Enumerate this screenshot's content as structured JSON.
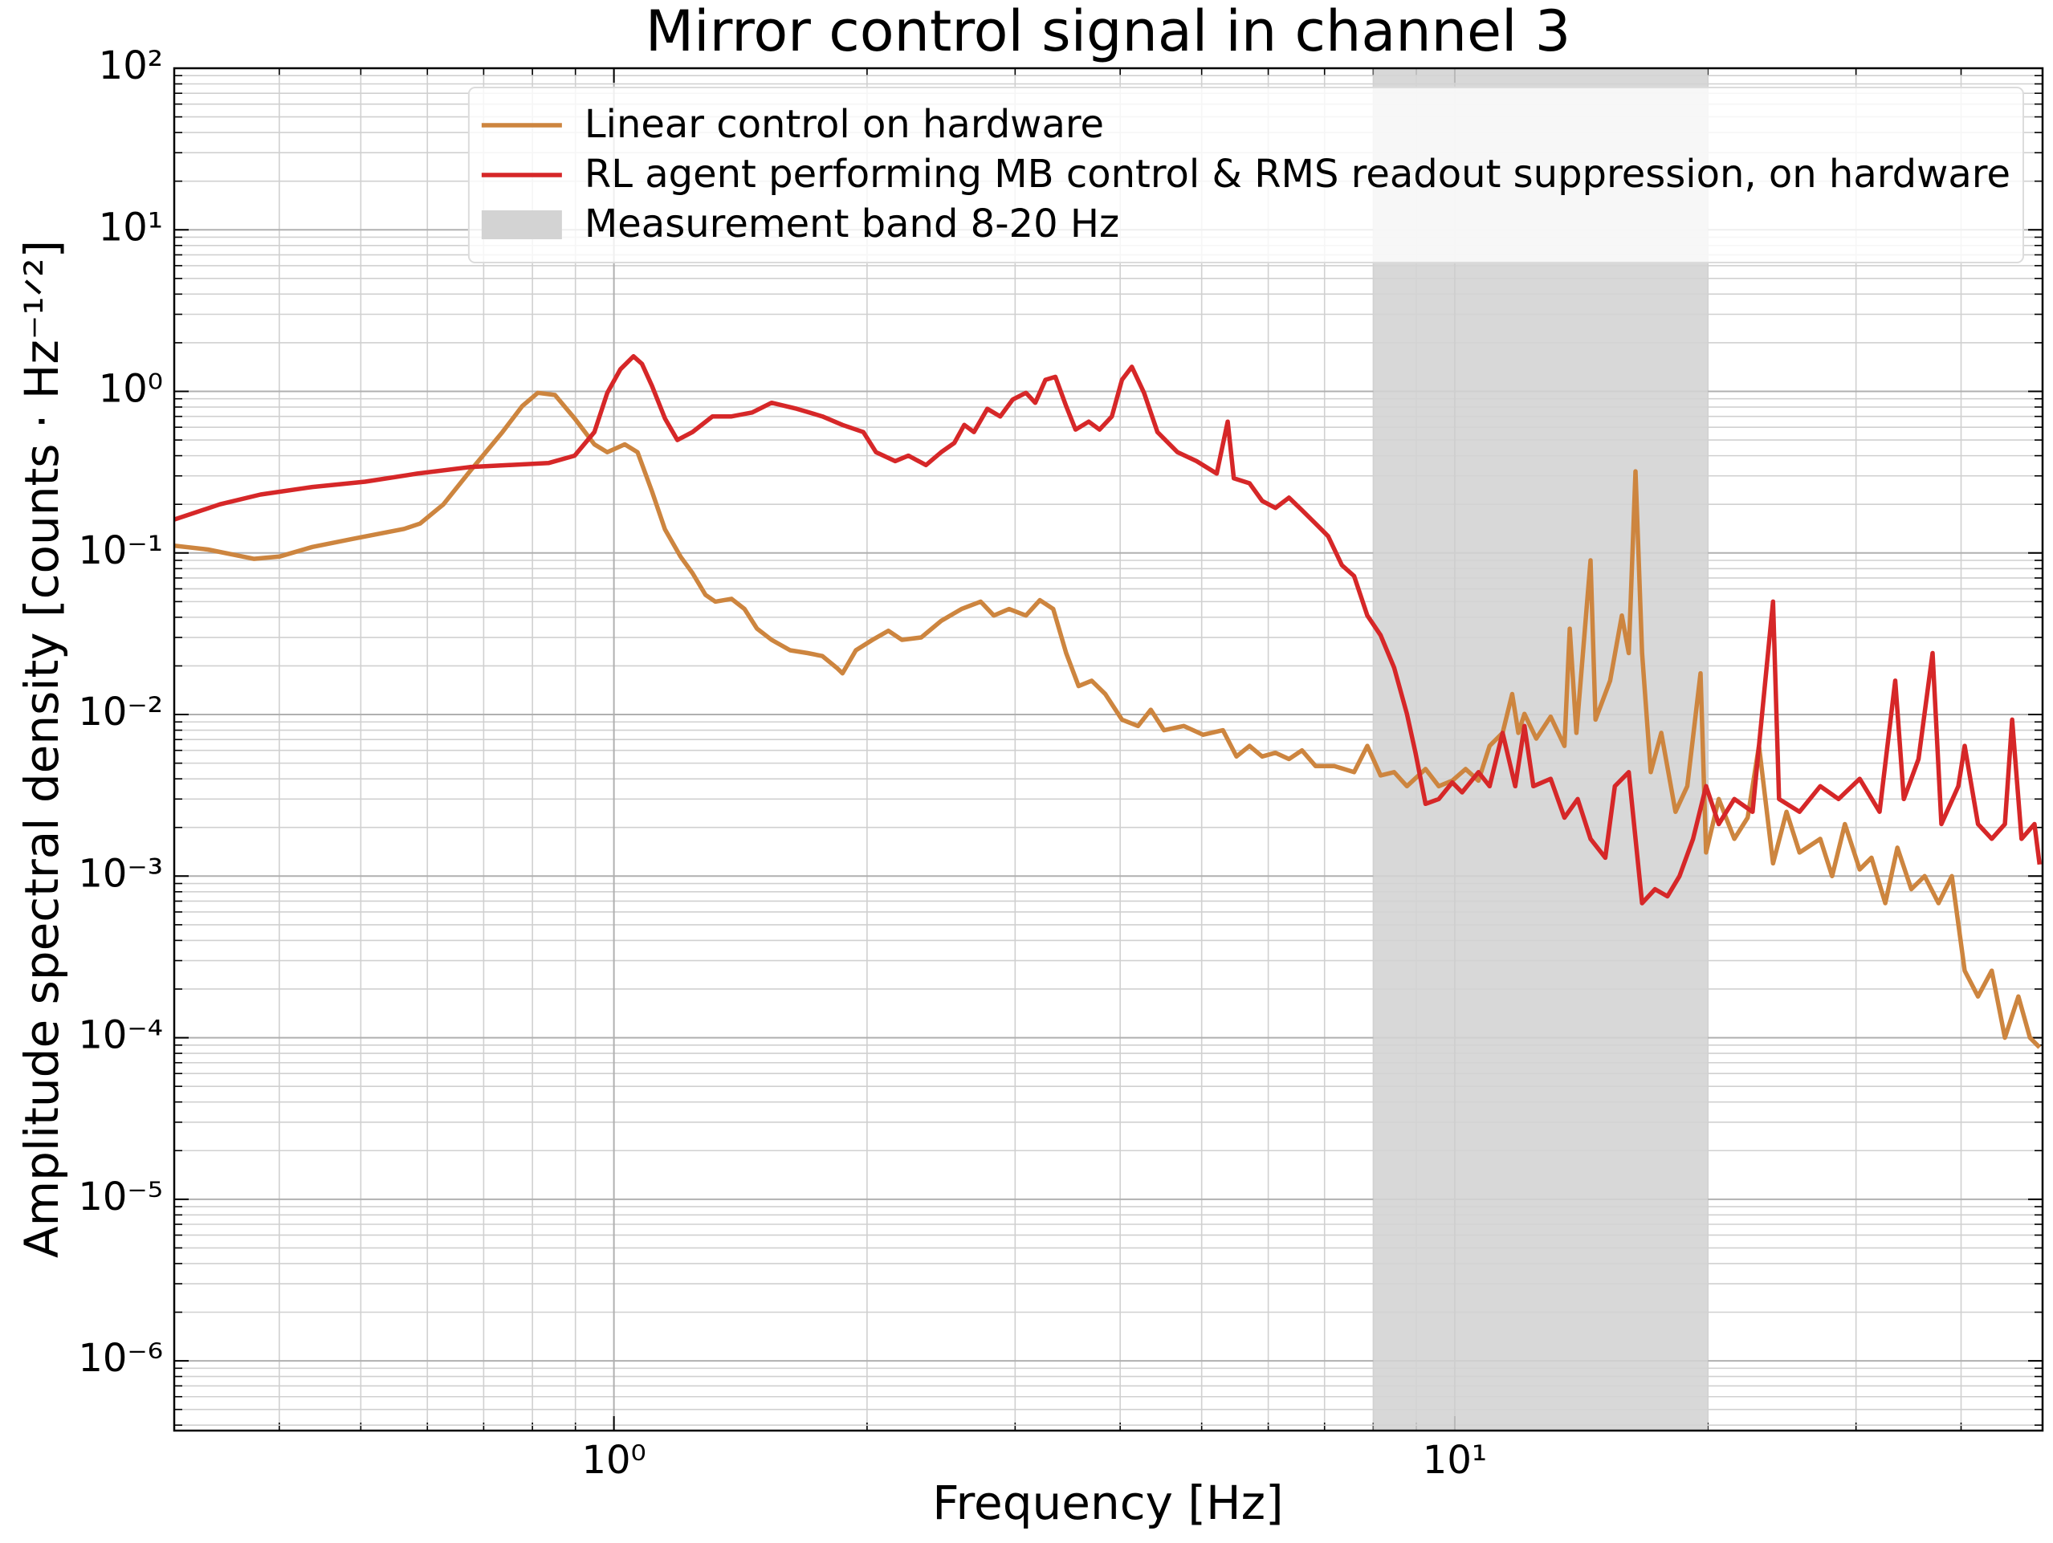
{
  "chart_data": {
    "type": "line",
    "title": "Mirror control signal in channel 3",
    "x_label": "Frequency [Hz]",
    "y_label": "Amplitude spectral density [counts · Hz⁻¹ᐟ²]",
    "xscale": "log",
    "yscale": "log",
    "grid": true,
    "legend": "upper right",
    "xlim": [
      0.3,
      50
    ],
    "ylim": [
      3.7e-07,
      100
    ],
    "xticks": [
      {
        "value": 1,
        "label": "10⁰"
      },
      {
        "value": 10,
        "label": "10¹"
      }
    ],
    "yticks": [
      {
        "value": 1e-06,
        "label": "10⁻⁶"
      },
      {
        "value": 1e-05,
        "label": "10⁻⁵"
      },
      {
        "value": 0.0001,
        "label": "10⁻⁴"
      },
      {
        "value": 0.001,
        "label": "10⁻³"
      },
      {
        "value": 0.01,
        "label": "10⁻²"
      },
      {
        "value": 0.1,
        "label": "10⁻¹"
      },
      {
        "value": 1,
        "label": "10⁰"
      },
      {
        "value": 10,
        "label": "10¹"
      },
      {
        "value": 100,
        "label": "10²"
      }
    ],
    "span": {
      "name": "Measurement band 8-20 Hz",
      "xmin": 8,
      "xmax": 20,
      "color": "#d3d3d3"
    },
    "series": [
      {
        "name": "Linear control on hardware",
        "color": "#cd853f",
        "x": [
          0.3,
          0.329,
          0.373,
          0.4,
          0.438,
          0.488,
          0.563,
          0.588,
          0.627,
          0.674,
          0.737,
          0.778,
          0.812,
          0.851,
          0.898,
          0.948,
          0.982,
          1.03,
          1.067,
          1.11,
          1.15,
          1.2,
          1.24,
          1.285,
          1.32,
          1.38,
          1.43,
          1.48,
          1.54,
          1.62,
          1.7,
          1.77,
          1.84,
          1.87,
          1.94,
          2.03,
          2.12,
          2.2,
          2.32,
          2.45,
          2.59,
          2.73,
          2.83,
          2.95,
          3.09,
          3.21,
          3.33,
          3.45,
          3.57,
          3.7,
          3.84,
          4.02,
          4.2,
          4.35,
          4.51,
          4.76,
          5.02,
          5.3,
          5.5,
          5.7,
          5.9,
          6.12,
          6.35,
          6.58,
          6.83,
          7.19,
          7.59,
          7.87,
          8.16,
          8.47,
          8.77,
          9.23,
          9.57,
          9.93,
          10.3,
          10.67,
          11.0,
          11.4,
          11.7,
          11.9,
          12.1,
          12.5,
          13.0,
          13.5,
          13.7,
          13.95,
          14.5,
          14.7,
          15.3,
          15.8,
          16.1,
          16.4,
          16.7,
          17.1,
          17.6,
          18.3,
          18.9,
          19.6,
          19.9,
          20.6,
          21.5,
          22.3,
          23.0,
          23.9,
          24.8,
          25.7,
          27.2,
          28.1,
          29.1,
          30.3,
          31.3,
          32.5,
          33.6,
          34.9,
          36.2,
          37.6,
          39.0,
          40.4,
          41.9,
          43.5,
          45.1,
          46.8,
          48.3,
          49.6
        ],
        "values": [
          0.111,
          0.105,
          0.092,
          0.095,
          0.109,
          0.122,
          0.141,
          0.152,
          0.2,
          0.32,
          0.56,
          0.81,
          0.98,
          0.95,
          0.68,
          0.47,
          0.42,
          0.47,
          0.42,
          0.24,
          0.14,
          0.095,
          0.075,
          0.055,
          0.05,
          0.052,
          0.045,
          0.034,
          0.029,
          0.025,
          0.024,
          0.023,
          0.0195,
          0.018,
          0.025,
          0.029,
          0.033,
          0.029,
          0.03,
          0.038,
          0.045,
          0.05,
          0.041,
          0.045,
          0.041,
          0.051,
          0.045,
          0.024,
          0.015,
          0.0162,
          0.0134,
          0.0093,
          0.0085,
          0.0107,
          0.008,
          0.0085,
          0.0075,
          0.008,
          0.0055,
          0.0064,
          0.0055,
          0.0058,
          0.0053,
          0.006,
          0.0048,
          0.0048,
          0.0044,
          0.0064,
          0.0042,
          0.0044,
          0.0036,
          0.0046,
          0.0036,
          0.0039,
          0.0046,
          0.0039,
          0.0064,
          0.0077,
          0.0134,
          0.0077,
          0.0101,
          0.0071,
          0.0097,
          0.0064,
          0.034,
          0.0077,
          0.09,
          0.0093,
          0.0162,
          0.041,
          0.024,
          0.32,
          0.024,
          0.0044,
          0.0077,
          0.0025,
          0.0036,
          0.018,
          0.0014,
          0.003,
          0.0017,
          0.0023,
          0.0064,
          0.0012,
          0.0025,
          0.0014,
          0.0017,
          0.001,
          0.0021,
          0.0011,
          0.0013,
          0.00068,
          0.0015,
          0.00083,
          0.001,
          0.00068,
          0.001,
          0.00026,
          0.00018,
          0.00026,
          0.0001,
          0.00018,
          0.0001,
          8.7e-05
        ]
      },
      {
        "name": "RL agent performing MB control & RMS readout suppression, on hardware",
        "color": "#d62728",
        "x": [
          0.3,
          0.34,
          0.38,
          0.438,
          0.506,
          0.584,
          0.674,
          0.75,
          0.836,
          0.898,
          0.948,
          0.982,
          1.018,
          1.055,
          1.08,
          1.11,
          1.15,
          1.19,
          1.24,
          1.31,
          1.38,
          1.46,
          1.54,
          1.65,
          1.77,
          1.87,
          1.98,
          2.05,
          2.16,
          2.24,
          2.35,
          2.45,
          2.54,
          2.61,
          2.68,
          2.78,
          2.88,
          2.98,
          3.09,
          3.17,
          3.26,
          3.35,
          3.45,
          3.54,
          3.67,
          3.78,
          3.91,
          4.02,
          4.13,
          4.27,
          4.43,
          4.68,
          4.93,
          5.21,
          5.37,
          5.46,
          5.7,
          5.9,
          6.12,
          6.35,
          6.58,
          6.83,
          7.07,
          7.34,
          7.59,
          7.87,
          8.16,
          8.47,
          8.77,
          8.98,
          9.23,
          9.57,
          9.93,
          10.2,
          10.67,
          11.0,
          11.4,
          11.8,
          12.1,
          12.4,
          13.0,
          13.5,
          14.0,
          14.5,
          15.1,
          15.5,
          16.1,
          16.7,
          17.3,
          17.9,
          18.5,
          19.2,
          19.9,
          20.6,
          21.5,
          22.6,
          23.9,
          24.3,
          25.7,
          27.2,
          28.6,
          30.3,
          32.0,
          33.4,
          34.2,
          35.6,
          37.0,
          37.9,
          39.7,
          40.4,
          41.9,
          43.5,
          45.1,
          46.0,
          47.2,
          48.9,
          49.6
        ],
        "values": [
          0.161,
          0.2,
          0.23,
          0.256,
          0.276,
          0.31,
          0.34,
          0.35,
          0.36,
          0.4,
          0.56,
          0.98,
          1.37,
          1.65,
          1.48,
          1.08,
          0.68,
          0.5,
          0.56,
          0.7,
          0.7,
          0.74,
          0.85,
          0.78,
          0.7,
          0.62,
          0.56,
          0.42,
          0.37,
          0.4,
          0.35,
          0.42,
          0.48,
          0.62,
          0.56,
          0.78,
          0.7,
          0.89,
          0.98,
          0.85,
          1.18,
          1.23,
          0.81,
          0.58,
          0.65,
          0.58,
          0.7,
          1.18,
          1.42,
          0.98,
          0.56,
          0.42,
          0.37,
          0.31,
          0.65,
          0.29,
          0.27,
          0.21,
          0.19,
          0.22,
          0.184,
          0.152,
          0.127,
          0.084,
          0.072,
          0.041,
          0.031,
          0.0195,
          0.0101,
          0.0058,
          0.0028,
          0.003,
          0.0038,
          0.0033,
          0.0044,
          0.0036,
          0.0077,
          0.0036,
          0.0085,
          0.0036,
          0.004,
          0.0023,
          0.003,
          0.0017,
          0.0013,
          0.0036,
          0.0044,
          0.00068,
          0.00083,
          0.00075,
          0.001,
          0.0017,
          0.0036,
          0.0021,
          0.003,
          0.0025,
          0.05,
          0.003,
          0.0025,
          0.0036,
          0.003,
          0.004,
          0.0025,
          0.0162,
          0.003,
          0.0053,
          0.024,
          0.0021,
          0.0036,
          0.0064,
          0.0021,
          0.0017,
          0.0021,
          0.0093,
          0.0017,
          0.0021,
          0.00118
        ]
      }
    ]
  }
}
